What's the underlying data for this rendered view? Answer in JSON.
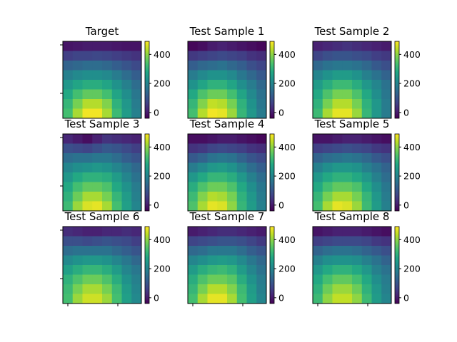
{
  "figure": {
    "colormap": "viridis",
    "colorbar_ticks": [
      0,
      200,
      400
    ],
    "vmin": -40,
    "vmax": 490
  },
  "chart_data": [
    {
      "type": "heatmap",
      "title": "Target",
      "cbar_ticks": [
        0,
        200,
        400
      ],
      "z": [
        [
          -10,
          -5,
          0,
          0,
          0,
          -5,
          -10,
          -10
        ],
        [
          60,
          70,
          70,
          75,
          70,
          60,
          50,
          40
        ],
        [
          130,
          140,
          150,
          150,
          140,
          120,
          100,
          80
        ],
        [
          190,
          210,
          220,
          220,
          210,
          180,
          150,
          120
        ],
        [
          240,
          270,
          290,
          290,
          270,
          230,
          190,
          150
        ],
        [
          280,
          330,
          360,
          360,
          330,
          270,
          220,
          170
        ],
        [
          310,
          380,
          430,
          430,
          390,
          300,
          240,
          180
        ],
        [
          330,
          420,
          480,
          480,
          420,
          320,
          250,
          190
        ]
      ]
    },
    {
      "type": "heatmap",
      "title": "Test Sample 1",
      "cbar_ticks": [
        0,
        200,
        400
      ],
      "z": [
        [
          -30,
          -20,
          0,
          10,
          0,
          -10,
          -20,
          -30
        ],
        [
          50,
          60,
          70,
          80,
          70,
          60,
          40,
          30
        ],
        [
          120,
          140,
          150,
          160,
          140,
          120,
          90,
          70
        ],
        [
          180,
          210,
          230,
          230,
          210,
          170,
          140,
          110
        ],
        [
          230,
          270,
          300,
          300,
          270,
          220,
          180,
          140
        ],
        [
          280,
          340,
          370,
          370,
          330,
          270,
          210,
          160
        ],
        [
          310,
          390,
          440,
          430,
          380,
          300,
          230,
          170
        ],
        [
          330,
          430,
          480,
          470,
          410,
          310,
          240,
          180
        ]
      ]
    },
    {
      "type": "heatmap",
      "title": "Test Sample 2",
      "cbar_ticks": [
        0,
        200,
        400
      ],
      "z": [
        [
          10,
          20,
          30,
          40,
          30,
          20,
          10,
          0
        ],
        [
          70,
          90,
          100,
          100,
          90,
          80,
          60,
          50
        ],
        [
          140,
          160,
          170,
          170,
          160,
          140,
          110,
          90
        ],
        [
          200,
          230,
          250,
          250,
          230,
          190,
          160,
          130
        ],
        [
          250,
          290,
          320,
          320,
          290,
          240,
          200,
          160
        ],
        [
          280,
          340,
          380,
          380,
          340,
          280,
          220,
          170
        ],
        [
          300,
          380,
          430,
          430,
          380,
          300,
          240,
          180
        ],
        [
          320,
          420,
          470,
          470,
          410,
          310,
          240,
          180
        ]
      ]
    },
    {
      "type": "heatmap",
      "title": "Test Sample 3",
      "cbar_ticks": [
        0,
        200,
        400
      ],
      "z": [
        [
          20,
          0,
          -20,
          10,
          40,
          30,
          20,
          10
        ],
        [
          90,
          80,
          70,
          90,
          110,
          100,
          80,
          60
        ],
        [
          150,
          160,
          160,
          170,
          170,
          150,
          120,
          100
        ],
        [
          200,
          220,
          230,
          240,
          230,
          200,
          170,
          140
        ],
        [
          240,
          280,
          300,
          300,
          290,
          250,
          200,
          160
        ],
        [
          280,
          330,
          360,
          360,
          340,
          280,
          230,
          180
        ],
        [
          300,
          370,
          420,
          420,
          380,
          310,
          250,
          190
        ],
        [
          320,
          410,
          460,
          470,
          420,
          330,
          260,
          200
        ]
      ]
    },
    {
      "type": "heatmap",
      "title": "Test Sample 4",
      "cbar_ticks": [
        0,
        200,
        400
      ],
      "z": [
        [
          -20,
          -20,
          -10,
          0,
          0,
          -10,
          -20,
          -30
        ],
        [
          40,
          50,
          70,
          80,
          70,
          60,
          40,
          30
        ],
        [
          110,
          130,
          160,
          170,
          160,
          130,
          100,
          80
        ],
        [
          180,
          210,
          240,
          250,
          230,
          190,
          150,
          120
        ],
        [
          240,
          280,
          310,
          310,
          290,
          240,
          190,
          150
        ],
        [
          290,
          340,
          370,
          370,
          340,
          280,
          220,
          170
        ],
        [
          320,
          390,
          430,
          420,
          380,
          300,
          240,
          180
        ],
        [
          340,
          420,
          470,
          460,
          400,
          310,
          250,
          190
        ]
      ]
    },
    {
      "type": "heatmap",
      "title": "Test Sample 5",
      "cbar_ticks": [
        0,
        200,
        400
      ],
      "z": [
        [
          -10,
          -10,
          0,
          10,
          10,
          0,
          -10,
          -20
        ],
        [
          60,
          70,
          80,
          90,
          80,
          70,
          50,
          40
        ],
        [
          130,
          150,
          160,
          170,
          160,
          140,
          110,
          90
        ],
        [
          190,
          220,
          240,
          240,
          230,
          190,
          160,
          130
        ],
        [
          240,
          280,
          300,
          300,
          280,
          240,
          190,
          150
        ],
        [
          280,
          330,
          360,
          360,
          340,
          280,
          220,
          170
        ],
        [
          310,
          380,
          420,
          420,
          380,
          310,
          240,
          180
        ],
        [
          330,
          420,
          470,
          460,
          410,
          320,
          250,
          190
        ]
      ]
    },
    {
      "type": "heatmap",
      "title": "Test Sample 6",
      "cbar_ticks": [
        0,
        200,
        400
      ],
      "z": [
        [
          30,
          20,
          10,
          10,
          20,
          20,
          30,
          20
        ],
        [
          90,
          90,
          80,
          90,
          100,
          90,
          80,
          60
        ],
        [
          150,
          160,
          160,
          160,
          160,
          140,
          120,
          100
        ],
        [
          210,
          230,
          240,
          240,
          230,
          200,
          170,
          140
        ],
        [
          260,
          290,
          310,
          310,
          290,
          250,
          200,
          170
        ],
        [
          300,
          340,
          370,
          370,
          340,
          290,
          230,
          190
        ],
        [
          320,
          380,
          420,
          420,
          380,
          320,
          250,
          200
        ],
        [
          330,
          410,
          450,
          450,
          410,
          330,
          260,
          210
        ]
      ]
    },
    {
      "type": "heatmap",
      "title": "Test Sample 7",
      "cbar_ticks": [
        0,
        200,
        400
      ],
      "z": [
        [
          0,
          10,
          20,
          30,
          30,
          20,
          10,
          0
        ],
        [
          70,
          80,
          90,
          100,
          100,
          90,
          70,
          50
        ],
        [
          140,
          150,
          170,
          170,
          170,
          150,
          120,
          100
        ],
        [
          200,
          220,
          240,
          250,
          240,
          210,
          170,
          140
        ],
        [
          250,
          290,
          310,
          320,
          300,
          250,
          200,
          160
        ],
        [
          290,
          340,
          370,
          370,
          350,
          290,
          230,
          180
        ],
        [
          310,
          380,
          430,
          430,
          390,
          320,
          250,
          190
        ],
        [
          330,
          420,
          470,
          470,
          420,
          330,
          260,
          200
        ]
      ]
    },
    {
      "type": "heatmap",
      "title": "Test Sample 8",
      "cbar_ticks": [
        0,
        200,
        400
      ],
      "z": [
        [
          -10,
          0,
          10,
          10,
          10,
          0,
          -10,
          -20
        ],
        [
          60,
          70,
          80,
          80,
          80,
          70,
          50,
          40
        ],
        [
          130,
          150,
          160,
          160,
          150,
          130,
          110,
          90
        ],
        [
          190,
          220,
          230,
          230,
          220,
          190,
          160,
          130
        ],
        [
          240,
          280,
          300,
          300,
          280,
          240,
          190,
          160
        ],
        [
          280,
          330,
          360,
          360,
          330,
          280,
          220,
          180
        ],
        [
          300,
          370,
          410,
          410,
          370,
          300,
          240,
          190
        ],
        [
          320,
          400,
          440,
          440,
          400,
          320,
          250,
          200
        ]
      ]
    }
  ]
}
